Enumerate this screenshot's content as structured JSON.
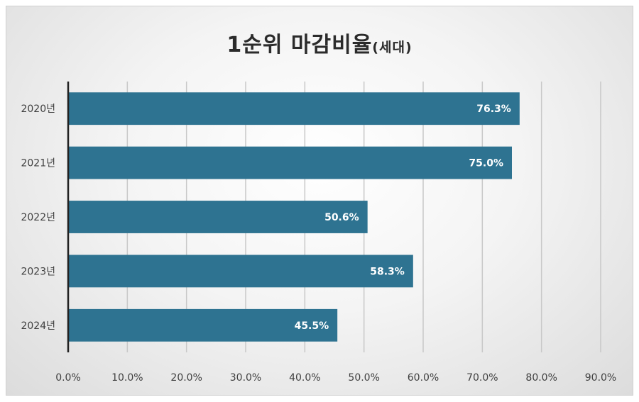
{
  "chart_data": {
    "type": "bar",
    "orientation": "horizontal",
    "title": "1순위 마감비율",
    "title_suffix": "(세대)",
    "categories": [
      "2020년",
      "2021년",
      "2022년",
      "2023년",
      "2024년"
    ],
    "values": [
      76.3,
      75.0,
      50.6,
      58.3,
      45.5
    ],
    "value_labels": [
      "76.3%",
      "75.0%",
      "50.6%",
      "58.3%",
      "45.5%"
    ],
    "xlim": [
      0,
      90
    ],
    "x_ticks": [
      0,
      10,
      20,
      30,
      40,
      50,
      60,
      70,
      80,
      90
    ],
    "x_tick_labels": [
      "0.0%",
      "10.0%",
      "20.0%",
      "30.0%",
      "40.0%",
      "50.0%",
      "60.0%",
      "70.0%",
      "80.0%",
      "90.0%"
    ],
    "grid": true,
    "legend": "none",
    "bar_color": "#2e7391",
    "grid_color": "#c8c8c8"
  }
}
